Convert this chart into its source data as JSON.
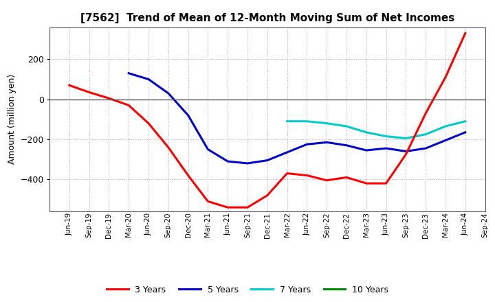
{
  "title": "[7562]  Trend of Mean of 12-Month Moving Sum of Net Incomes",
  "ylabel": "Amount (million yen)",
  "background_color": "#ffffff",
  "plot_bg_color": "#ffffff",
  "grid_color": "#aaaaaa",
  "x_labels": [
    "Jun-19",
    "Sep-19",
    "Dec-19",
    "Mar-20",
    "Jun-20",
    "Sep-20",
    "Dec-20",
    "Mar-21",
    "Jun-21",
    "Sep-21",
    "Dec-21",
    "Mar-22",
    "Jun-22",
    "Sep-22",
    "Dec-22",
    "Mar-23",
    "Jun-23",
    "Sep-23",
    "Dec-23",
    "Mar-24",
    "Jun-24",
    "Sep-24"
  ],
  "y3": [
    70,
    35,
    5,
    -30,
    -120,
    -240,
    -380,
    -510,
    -540,
    -540,
    -480,
    -370,
    -380,
    -405,
    -390,
    -420,
    -420,
    -275,
    -70,
    110,
    330,
    null
  ],
  "y5": [
    null,
    null,
    null,
    130,
    100,
    30,
    -80,
    -250,
    -310,
    -320,
    -305,
    -265,
    -225,
    -215,
    -230,
    -255,
    -245,
    -260,
    -245,
    -205,
    -165,
    null
  ],
  "y7": [
    null,
    null,
    null,
    null,
    null,
    null,
    null,
    null,
    null,
    null,
    null,
    -110,
    -110,
    -120,
    -135,
    -165,
    -185,
    -195,
    -175,
    -135,
    -110,
    null
  ],
  "y10": [
    null,
    null,
    null,
    null,
    null,
    null,
    null,
    null,
    null,
    null,
    null,
    null,
    null,
    null,
    null,
    null,
    null,
    null,
    null,
    null,
    null,
    null
  ],
  "colors": {
    "3 Years": "#ff0000",
    "5 Years": "#0000cc",
    "7 Years": "#00cccc",
    "10 Years": "#008800"
  },
  "ylim": [
    -560,
    360
  ],
  "yticks": [
    -400,
    -200,
    0,
    200
  ],
  "legend_labels": [
    "3 Years",
    "5 Years",
    "7 Years",
    "10 Years"
  ],
  "legend_colors": [
    "#ff0000",
    "#0000cc",
    "#00cccc",
    "#008800"
  ],
  "linewidth": 2.2
}
